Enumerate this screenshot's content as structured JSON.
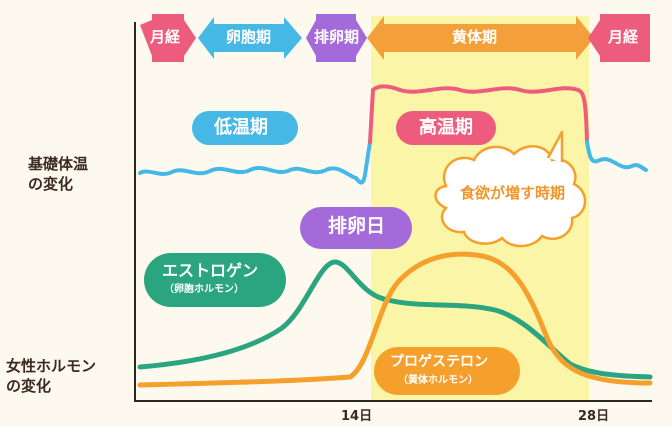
{
  "phases": [
    {
      "label": "月経",
      "color": "#ee5c7d"
    },
    {
      "label": "卵胞期",
      "color": "#45b8e6"
    },
    {
      "label": "排卵期",
      "color": "#a56ad9"
    },
    {
      "label": "黄体期",
      "color": "#f4a03a"
    },
    {
      "label": "月経",
      "color": "#ee5c7d"
    }
  ],
  "temperature": {
    "side_label_line1": "基礎体温",
    "side_label_line2": "の変化",
    "low_label": "低温期",
    "high_label": "高温期",
    "appetite_label": "食欲が増す時期"
  },
  "ovulation_label": "排卵日",
  "hormones": {
    "side_label_line1": "女性ホルモン",
    "side_label_line2": "の変化",
    "estrogen_label": "エストロゲン",
    "estrogen_sub": "（卵胞ホルモン）",
    "progesterone_label": "プロゲステロン",
    "progesterone_sub": "（黄体ホルモン）"
  },
  "axis": {
    "tick_14": "14日",
    "tick_28": "28日"
  },
  "colors": {
    "menstruation": "#ee5c7d",
    "follicular": "#45b8e6",
    "ovulation": "#a56ad9",
    "luteal": "#f4a03a",
    "luteal_band": "#fbf5a8",
    "estrogen": "#2aa57f",
    "progesterone": "#f5a02c",
    "temperature_low": "#45b8e6",
    "temperature_high": "#ee5c7d",
    "low_label_bubble": "#45b8e6",
    "high_label_bubble": "#ee5c7d",
    "ovulation_bubble": "#a56ad9"
  }
}
